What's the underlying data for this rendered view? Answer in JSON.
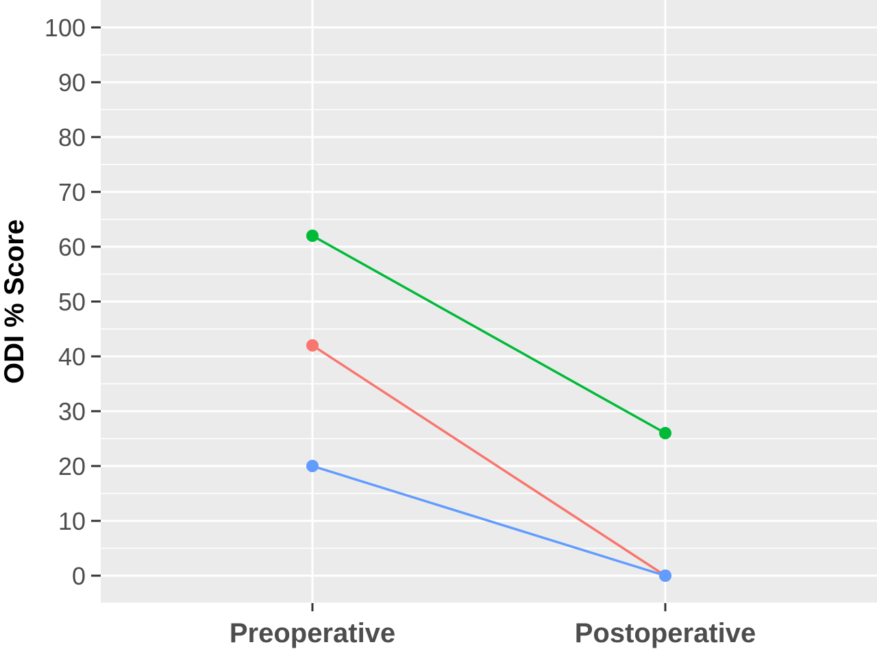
{
  "chart_data": {
    "type": "line",
    "title": "",
    "xlabel": "",
    "ylabel": "ODI % Score",
    "categories": [
      "Preoperative",
      "Postoperative"
    ],
    "ylim": [
      -5,
      105
    ],
    "yticks": [
      0,
      10,
      20,
      30,
      40,
      50,
      60,
      70,
      80,
      90,
      100
    ],
    "grid": true,
    "legend": "none",
    "series": [
      {
        "color": "#F8766D",
        "values": [
          42,
          0
        ]
      },
      {
        "color": "#00BA38",
        "values": [
          62,
          26
        ]
      },
      {
        "color": "#619CFF",
        "values": [
          20,
          0
        ]
      }
    ],
    "colors": {
      "panel": "#EBEBEB",
      "grid": "#FFFFFF",
      "text": "#4D4D4D",
      "tick": "#333333"
    }
  }
}
